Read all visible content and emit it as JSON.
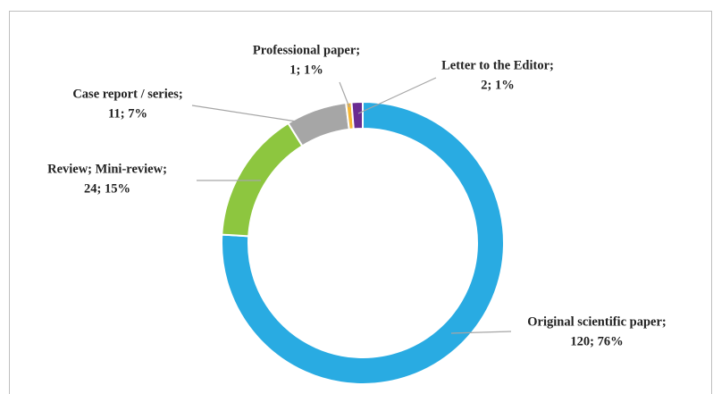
{
  "chart_data": {
    "type": "donut",
    "categories": [
      "Original scientific paper;",
      "Review; Mini-review;",
      "Case report / series;",
      "Professional paper;",
      "Letter to the Editor;"
    ],
    "values": [
      120,
      24,
      11,
      1,
      2
    ],
    "value_labels": [
      "120; 76%",
      "24; 15%",
      "11; 7%",
      "1; 1%",
      "2; 1%"
    ],
    "colors": [
      "#29abe2",
      "#8dc63f",
      "#a6a6a6",
      "#f7b733",
      "#6a2c91"
    ]
  }
}
